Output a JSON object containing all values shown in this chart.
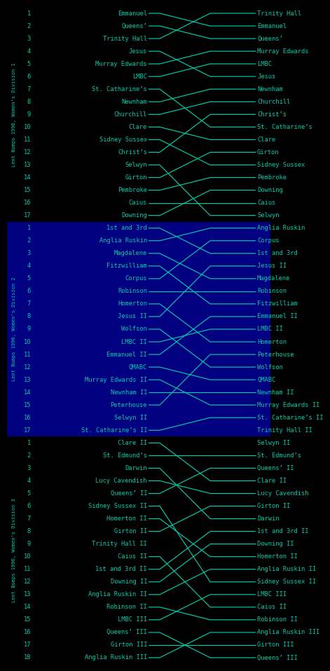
{
  "fig_bg": "#000000",
  "line_color": "#00ccaa",
  "text_color": "#00ccaa",
  "div_bg": [
    "#000000",
    "#000080",
    "#000000"
  ],
  "sidebar_labels": [
    "Lent Bumps 1996, Women's Division 1",
    "Lent Bumps 1996, Women's Division 2",
    "Lent Bumps 1996, Women's Division 3"
  ],
  "divisions": [
    {
      "left_crews": [
        "Emmanuel",
        "Queens’",
        "Trinity Hall",
        "Jesus",
        "Murray Edwards",
        "LMBC",
        "St. Catharine’s",
        "Newnham",
        "Churchill",
        "Clare",
        "Sidney Sussex",
        "Christ’s",
        "Selwyn",
        "Girton",
        "Pembroke",
        "Caius",
        "Downing"
      ],
      "right_crews": [
        "Trinity Hall",
        "Emmanuel",
        "Queens’",
        "Murray Edwards",
        "LMBC",
        "Jesus",
        "Newnham",
        "Churchill",
        "Christ’s",
        "St. Catharine’s",
        "Clare",
        "Girton",
        "Sidney Sussex",
        "Pembroke",
        "Downing",
        "Caius",
        "Selwyn"
      ]
    },
    {
      "left_crews": [
        "1st and 3rd",
        "Anglia Ruskin",
        "Magdalene",
        "Fitzwilliam",
        "Corpus",
        "Robinson",
        "Homerton",
        "Jesus II",
        "Wolfson",
        "LMBC II",
        "Emmanuel II",
        "QMABC",
        "Murray Edwards II",
        "Newnham II",
        "Peterhouse",
        "Selwyn II",
        "St. Catharine’s II"
      ],
      "right_crews": [
        "Anglia Ruskin",
        "Corpus",
        "1st and 3rd",
        "Jesus II",
        "Magdalene",
        "Robinson",
        "Fitzwilliam",
        "Emmanuel II",
        "LMBC II",
        "Homerton",
        "Peterhouse",
        "Wolfson",
        "QMABC",
        "Newnham II",
        "Murray Edwards II",
        "St. Catharine’s II",
        "Trinity Hall II"
      ]
    },
    {
      "left_crews": [
        "Clare II",
        "St. Edmund’s",
        "Darwin",
        "Lucy Cavendish",
        "Queens’ II",
        "Sidney Sussex II",
        "Homerton II",
        "Girton II",
        "Trinity Hall II",
        "Caius II",
        "1st and 3rd II",
        "Downing II",
        "Anglia Ruskin II",
        "Robinson II",
        "LMBC III",
        "Queens’ III",
        "Girton III",
        "Anglia Ruskin III"
      ],
      "right_crews": [
        "Selwyn II",
        "St. Edmund’s",
        "Queens’ II",
        "Clare II",
        "Lucy Cavendish",
        "Girton II",
        "Darwin",
        "1st and 3rd II",
        "Downing II",
        "Homerton II",
        "Anglia Ruskin II",
        "Sidney Sussex II",
        "LMBC III",
        "Caius II",
        "Robinson II",
        "Anglia Ruskin III",
        "Girton III",
        "Queens’ III"
      ]
    }
  ]
}
